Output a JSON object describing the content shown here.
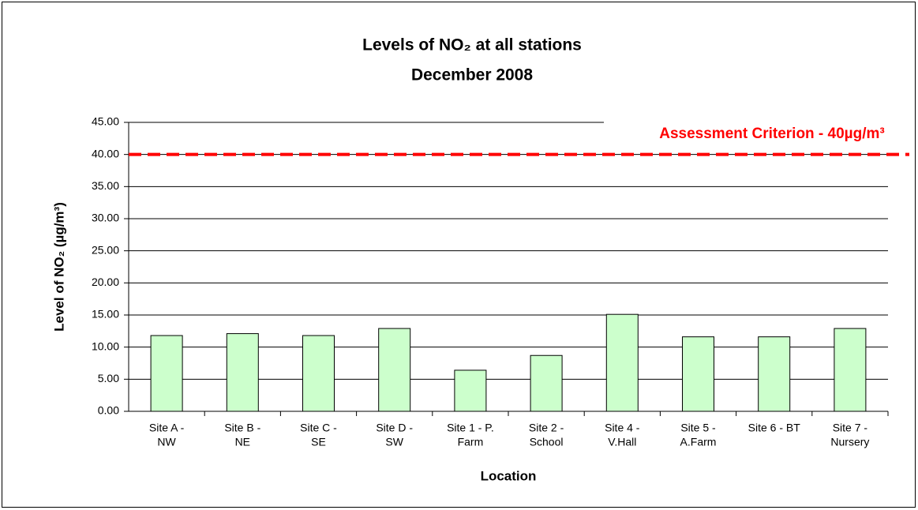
{
  "chart_data": {
    "type": "bar",
    "title": "Levels of NO₂ at all stations",
    "subtitle": "December 2008",
    "x_label": "Location",
    "y_label": "Level of NO₂ (µg/m³)",
    "annotation": "Assessment Criterion - 40µg/m³",
    "threshold": 40,
    "threshold_color": "#ff0000",
    "categories": [
      [
        "Site A -",
        "NW"
      ],
      [
        "Site B -",
        "NE"
      ],
      [
        "Site C -",
        "SE"
      ],
      [
        "Site D -",
        "SW"
      ],
      [
        "Site 1 - P.",
        "Farm"
      ],
      [
        "Site 2 -",
        "School"
      ],
      [
        "Site 4 -",
        "V.Hall"
      ],
      [
        "Site 5 -",
        "A.Farm"
      ],
      [
        "Site 6 - BT"
      ],
      [
        "Site 7 -",
        "Nursery"
      ]
    ],
    "values": [
      11.8,
      12.1,
      11.8,
      12.9,
      6.4,
      8.7,
      15.1,
      11.6,
      11.6,
      12.9
    ],
    "color": "#ccffcc",
    "ylim": [
      0,
      45
    ],
    "yticks": [
      {
        "value": 0,
        "label": "0.00"
      },
      {
        "value": 5,
        "label": "5.00"
      },
      {
        "value": 10,
        "label": "10.00"
      },
      {
        "value": 15,
        "label": "15.00"
      },
      {
        "value": 20,
        "label": "20.00"
      },
      {
        "value": 25,
        "label": "25.00"
      },
      {
        "value": 30,
        "label": "30.00"
      },
      {
        "value": 35,
        "label": "35.00"
      },
      {
        "value": 40,
        "label": "40.00"
      },
      {
        "value": 45,
        "label": "45.00"
      }
    ],
    "grid": true
  }
}
